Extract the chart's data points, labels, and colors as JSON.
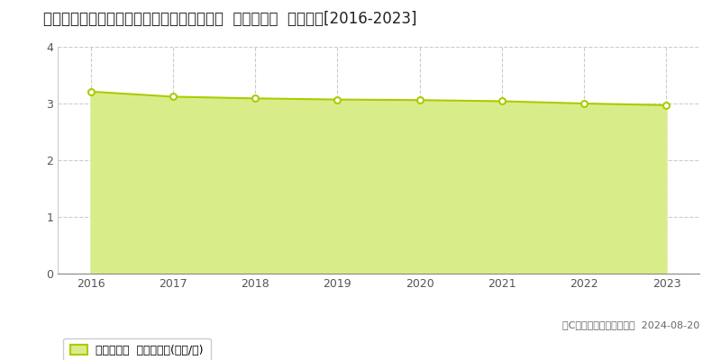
{
  "title": "福島県西白河郡泉崎村大字踏瀬字踏瀬３０番  基準地価格  地価推移[2016-2023]",
  "years": [
    2016,
    2017,
    2018,
    2019,
    2020,
    2021,
    2022,
    2023
  ],
  "values": [
    3.21,
    3.12,
    3.09,
    3.07,
    3.06,
    3.04,
    3.0,
    2.97
  ],
  "line_color": "#aacc00",
  "fill_color": "#d8ed8a",
  "marker_color": "#ffffff",
  "marker_edge_color": "#aacc00",
  "grid_color": "#aaaaaa",
  "background_color": "#ffffff",
  "ylim": [
    0,
    4
  ],
  "yticks": [
    0,
    1,
    2,
    3,
    4
  ],
  "xlim": [
    2015.6,
    2023.4
  ],
  "legend_label": "基準地価格  平均坪単価(万円/坪)",
  "copyright_text": "（C）土地価格ドットコム  2024-08-20",
  "title_fontsize": 12,
  "axis_fontsize": 9,
  "legend_fontsize": 9
}
